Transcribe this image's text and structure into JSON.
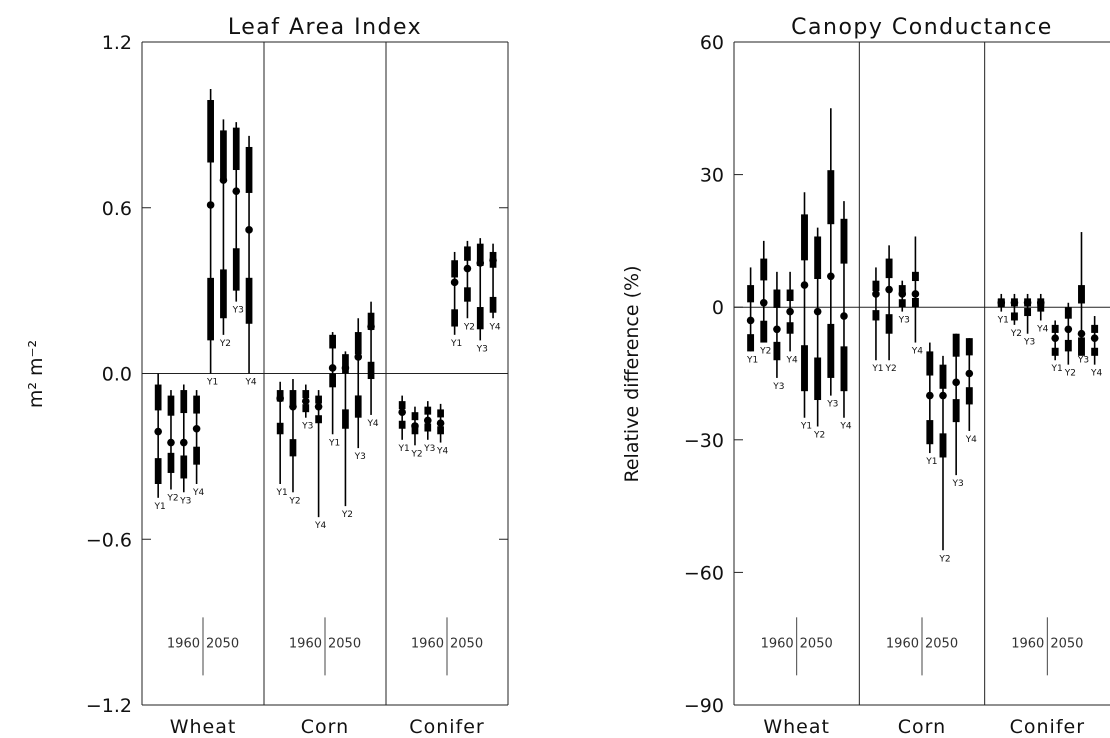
{
  "chart_data": [
    {
      "type": "box",
      "title": "Leaf Area Index",
      "ylabel": "m² m⁻²",
      "ylim": [
        -1.2,
        1.2
      ],
      "yticks": [
        "-1.2",
        "-0.6",
        "0.0",
        "0.6",
        "1.2"
      ],
      "categories": [
        "Wheat",
        "Corn",
        "Conifer"
      ],
      "periods": [
        "1960",
        "2050"
      ],
      "groups": [
        {
          "category": "Wheat",
          "period": "1960",
          "boxes": [
            {
              "label": "Y1",
              "whisker": [
                -0.45,
                0.0
              ],
              "box": [
                -0.4,
                -0.04
              ],
              "mid": -0.21
            },
            {
              "label": "Y2",
              "whisker": [
                -0.42,
                -0.06
              ],
              "box": [
                -0.36,
                -0.08
              ],
              "mid": -0.25
            },
            {
              "label": "Y3",
              "whisker": [
                -0.43,
                -0.04
              ],
              "box": [
                -0.38,
                -0.06
              ],
              "mid": -0.25
            },
            {
              "label": "Y4",
              "whisker": [
                -0.4,
                -0.06
              ],
              "box": [
                -0.33,
                -0.08
              ],
              "mid": -0.2
            }
          ]
        },
        {
          "category": "Wheat",
          "period": "2050",
          "boxes": [
            {
              "label": "Y1",
              "whisker": [
                0.0,
                1.03
              ],
              "box": [
                0.12,
                0.99
              ],
              "mid": 0.61
            },
            {
              "label": "Y2",
              "whisker": [
                0.14,
                0.92
              ],
              "box": [
                0.2,
                0.88
              ],
              "mid": 0.7
            },
            {
              "label": "Y3",
              "whisker": [
                0.26,
                0.91
              ],
              "box": [
                0.3,
                0.89
              ],
              "mid": 0.66
            },
            {
              "label": "Y4",
              "whisker": [
                0.0,
                0.86
              ],
              "box": [
                0.18,
                0.82
              ],
              "mid": 0.52
            }
          ]
        },
        {
          "category": "Corn",
          "period": "1960",
          "boxes": [
            {
              "label": "Y1",
              "whisker": [
                -0.4,
                -0.03
              ],
              "box": [
                -0.22,
                -0.06
              ],
              "mid": -0.09
            },
            {
              "label": "Y2",
              "whisker": [
                -0.43,
                -0.02
              ],
              "box": [
                -0.3,
                -0.06
              ],
              "mid": -0.12
            },
            {
              "label": "Y3",
              "whisker": [
                -0.16,
                -0.04
              ],
              "box": [
                -0.14,
                -0.06
              ],
              "mid": -0.1
            },
            {
              "label": "Y4",
              "whisker": [
                -0.52,
                -0.06
              ],
              "box": [
                -0.18,
                -0.08
              ],
              "mid": -0.12
            }
          ]
        },
        {
          "category": "Corn",
          "period": "2050",
          "boxes": [
            {
              "label": "Y1",
              "whisker": [
                -0.22,
                0.15
              ],
              "box": [
                -0.05,
                0.14
              ],
              "mid": 0.02
            },
            {
              "label": "Y2",
              "whisker": [
                -0.48,
                0.08
              ],
              "box": [
                -0.2,
                0.07
              ],
              "mid": 0.02
            },
            {
              "label": "Y3",
              "whisker": [
                -0.27,
                0.2
              ],
              "box": [
                -0.16,
                0.15
              ],
              "mid": 0.06
            },
            {
              "label": "Y4",
              "whisker": [
                -0.15,
                0.26
              ],
              "box": [
                -0.02,
                0.22
              ],
              "mid": 0.17
            }
          ]
        },
        {
          "category": "Conifer",
          "period": "1960",
          "boxes": [
            {
              "label": "Y1",
              "whisker": [
                -0.24,
                -0.08
              ],
              "box": [
                -0.2,
                -0.1
              ],
              "mid": -0.14
            },
            {
              "label": "Y2",
              "whisker": [
                -0.26,
                -0.12
              ],
              "box": [
                -0.22,
                -0.14
              ],
              "mid": -0.19
            },
            {
              "label": "Y3",
              "whisker": [
                -0.24,
                -0.1
              ],
              "box": [
                -0.21,
                -0.12
              ],
              "mid": -0.17
            },
            {
              "label": "Y4",
              "whisker": [
                -0.25,
                -0.11
              ],
              "box": [
                -0.22,
                -0.13
              ],
              "mid": -0.18
            }
          ]
        },
        {
          "category": "Conifer",
          "period": "2050",
          "boxes": [
            {
              "label": "Y1",
              "whisker": [
                0.14,
                0.44
              ],
              "box": [
                0.17,
                0.41
              ],
              "mid": 0.33
            },
            {
              "label": "Y2",
              "whisker": [
                0.2,
                0.48
              ],
              "box": [
                0.26,
                0.46
              ],
              "mid": 0.38
            },
            {
              "label": "Y3",
              "whisker": [
                0.12,
                0.49
              ],
              "box": [
                0.16,
                0.47
              ],
              "mid": 0.4
            },
            {
              "label": "Y4",
              "whisker": [
                0.2,
                0.47
              ],
              "box": [
                0.22,
                0.44
              ],
              "mid": 0.41
            }
          ]
        }
      ]
    },
    {
      "type": "box",
      "title": "Canopy Conductance",
      "ylabel": "Relative difference (%)",
      "ylim": [
        -90,
        60
      ],
      "yticks": [
        "-90",
        "-60",
        "-30",
        "0",
        "30",
        "60"
      ],
      "categories": [
        "Wheat",
        "Corn",
        "Conifer"
      ],
      "periods": [
        "1960",
        "2050"
      ],
      "groups": [
        {
          "category": "Wheat",
          "period": "1960",
          "boxes": [
            {
              "label": "Y1",
              "whisker": [
                -10,
                9
              ],
              "box": [
                -10,
                5
              ],
              "mid": -3
            },
            {
              "label": "Y2",
              "whisker": [
                -8,
                15
              ],
              "box": [
                -8,
                11
              ],
              "mid": 1
            },
            {
              "label": "Y3",
              "whisker": [
                -16,
                8
              ],
              "box": [
                -12,
                4
              ],
              "mid": -5
            },
            {
              "label": "Y4",
              "whisker": [
                -10,
                8
              ],
              "box": [
                -6,
                4
              ],
              "mid": -1
            }
          ]
        },
        {
          "category": "Wheat",
          "period": "2050",
          "boxes": [
            {
              "label": "Y1",
              "whisker": [
                -25,
                26
              ],
              "box": [
                -19,
                21
              ],
              "mid": 5
            },
            {
              "label": "Y2",
              "whisker": [
                -27,
                18
              ],
              "box": [
                -21,
                16
              ],
              "mid": -1
            },
            {
              "label": "Y3",
              "whisker": [
                -20,
                45
              ],
              "box": [
                -16,
                31
              ],
              "mid": 7
            },
            {
              "label": "Y4",
              "whisker": [
                -25,
                24
              ],
              "box": [
                -19,
                20
              ],
              "mid": -2
            }
          ]
        },
        {
          "category": "Corn",
          "period": "1960",
          "boxes": [
            {
              "label": "Y1",
              "whisker": [
                -12,
                9
              ],
              "box": [
                -3,
                6
              ],
              "mid": 3
            },
            {
              "label": "Y2",
              "whisker": [
                -12,
                14
              ],
              "box": [
                -6,
                11
              ],
              "mid": 4
            },
            {
              "label": "Y3",
              "whisker": [
                -1,
                6
              ],
              "box": [
                0,
                5
              ],
              "mid": 3
            },
            {
              "label": "Y4",
              "whisker": [
                -8,
                16
              ],
              "box": [
                0,
                8
              ],
              "mid": 3
            }
          ]
        },
        {
          "category": "Corn",
          "period": "2050",
          "boxes": [
            {
              "label": "Y1",
              "whisker": [
                -33,
                -8
              ],
              "box": [
                -31,
                -10
              ],
              "mid": -20
            },
            {
              "label": "Y2",
              "whisker": [
                -55,
                -11
              ],
              "box": [
                -34,
                -13
              ],
              "mid": -20
            },
            {
              "label": "Y3",
              "whisker": [
                -38,
                -6
              ],
              "box": [
                -26,
                -6
              ],
              "mid": -17
            },
            {
              "label": "Y4",
              "whisker": [
                -28,
                -7
              ],
              "box": [
                -22,
                -7
              ],
              "mid": -15
            }
          ]
        },
        {
          "category": "Conifer",
          "period": "1960",
          "boxes": [
            {
              "label": "Y1",
              "whisker": [
                -1,
                3
              ],
              "box": [
                0,
                2
              ],
              "mid": 1
            },
            {
              "label": "Y2",
              "whisker": [
                -4,
                3
              ],
              "box": [
                -3,
                2
              ],
              "mid": 1
            },
            {
              "label": "Y3",
              "whisker": [
                -6,
                3
              ],
              "box": [
                -2,
                2
              ],
              "mid": 1
            },
            {
              "label": "Y4",
              "whisker": [
                -3,
                3
              ],
              "box": [
                -1,
                2
              ],
              "mid": 1
            }
          ]
        },
        {
          "category": "Conifer",
          "period": "2050",
          "boxes": [
            {
              "label": "Y1",
              "whisker": [
                -12,
                -3
              ],
              "box": [
                -11,
                -4
              ],
              "mid": -7
            },
            {
              "label": "Y2",
              "whisker": [
                -13,
                1
              ],
              "box": [
                -10,
                0
              ],
              "mid": -5
            },
            {
              "label": "Y3",
              "whisker": [
                -10,
                17
              ],
              "box": [
                -11,
                5
              ],
              "mid": -6
            },
            {
              "label": "Y4",
              "whisker": [
                -13,
                -2
              ],
              "box": [
                -11,
                -4
              ],
              "mid": -7
            }
          ]
        }
      ]
    }
  ]
}
